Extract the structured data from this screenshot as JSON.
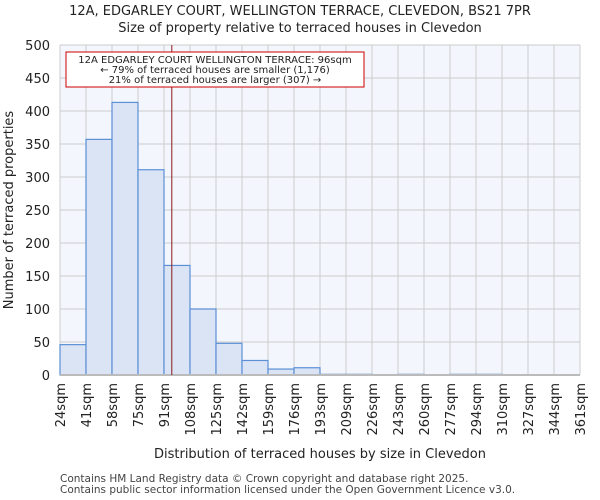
{
  "chart_data": {
    "type": "bar",
    "title": "12A, EDGARLEY COURT, WELLINGTON TERRACE, CLEVEDON, BS21 7PR",
    "subtitle": "Size of property relative to terraced houses in Clevedon",
    "xlabel": "Distribution of terraced houses by size in Clevedon",
    "ylabel": "Number of terraced properties",
    "x_ticks": [
      "24sqm",
      "41sqm",
      "58sqm",
      "75sqm",
      "91sqm",
      "108sqm",
      "125sqm",
      "142sqm",
      "159sqm",
      "176sqm",
      "193sqm",
      "209sqm",
      "226sqm",
      "243sqm",
      "260sqm",
      "277sqm",
      "294sqm",
      "310sqm",
      "327sqm",
      "344sqm",
      "361sqm"
    ],
    "values": [
      46,
      357,
      413,
      311,
      166,
      100,
      48,
      22,
      9,
      11,
      1,
      1,
      0,
      1,
      0,
      1,
      1,
      0,
      0,
      0
    ],
    "y_ticks": [
      0,
      50,
      100,
      150,
      200,
      250,
      300,
      350,
      400,
      450,
      500
    ],
    "ylim": [
      0,
      500
    ],
    "grid": true,
    "property_marker_bin_position": 4.3,
    "annotation": [
      "12A EDGARLEY COURT WELLINGTON TERRACE: 96sqm",
      "← 79% of terraced houses are smaller (1,176)",
      "21% of terraced houses are larger (307) →"
    ],
    "colors": {
      "bar_fill": "#dae4f4",
      "bar_edge": "#5b8fd6",
      "plot_bg": "#f3f6fd",
      "grid": "#cccccc",
      "marker": "#8b1a1a",
      "annotation_border": "#cc0000"
    }
  },
  "footer": [
    "Contains HM Land Registry data © Crown copyright and database right 2025.",
    "Contains public sector information licensed under the Open Government Licence v3.0."
  ]
}
